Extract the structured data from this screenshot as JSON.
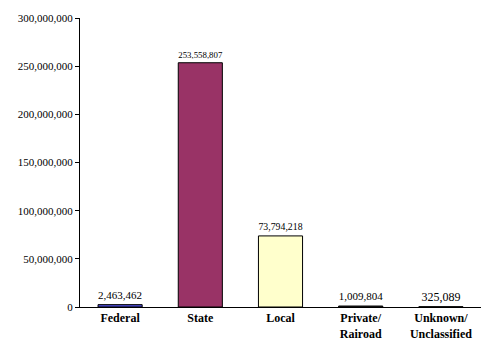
{
  "chart_data": {
    "type": "bar",
    "categories": [
      "Federal",
      "State",
      "Local",
      "Private/\nRairoad",
      "Unknown/\nUnclassified"
    ],
    "values": [
      2463462,
      253558807,
      73794218,
      1009804,
      325089
    ],
    "value_labels": [
      "2,463,462",
      "253,558,807",
      "73,794,218",
      "1,009,804",
      "325,089"
    ],
    "colors": [
      "#4a4ad0",
      "#993366",
      "#ffffcc",
      "#3a3a3a",
      "#bfbfbf"
    ],
    "data_labels": true,
    "grid": false,
    "ylim": [
      0,
      300000000
    ],
    "yticks": [
      0,
      {
        "value": 50000000,
        "label": "50,000,000"
      },
      {
        "value": 100000000,
        "label": "100,000,000"
      },
      {
        "value": 150000000,
        "label": "150,000,000"
      },
      {
        "value": 200000000,
        "label": "200,000,000"
      },
      {
        "value": 250000000,
        "label": "250,000,000"
      },
      {
        "value": 300000000,
        "label": "300,000,000"
      }
    ]
  }
}
